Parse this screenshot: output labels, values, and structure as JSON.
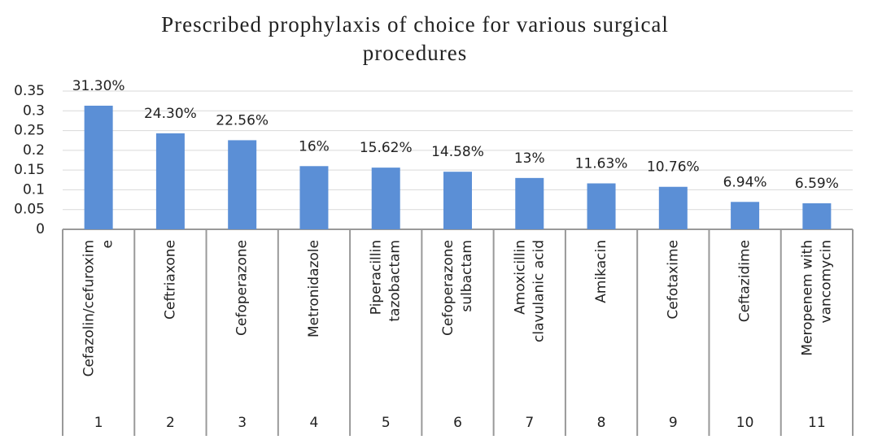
{
  "chart_data": {
    "type": "bar",
    "title": [
      "Prescribed prophylaxis of choice for various surgical",
      "procedures"
    ],
    "categories": [
      "1",
      "2",
      "3",
      "4",
      "5",
      "6",
      "7",
      "8",
      "9",
      "10",
      "11"
    ],
    "category_names": [
      [
        "Cefazolin/cefuroxim",
        "e"
      ],
      [
        "Ceftriaxone"
      ],
      [
        "Cefoperazone"
      ],
      [
        "Metronidazole"
      ],
      [
        "Piperacillin",
        "tazobactam"
      ],
      [
        "Cefoperazone",
        "sulbactam"
      ],
      [
        "Amoxicillin",
        "clavulanic acid"
      ],
      [
        "Amikacin"
      ],
      [
        "Cefotaxime"
      ],
      [
        "Ceftazidime"
      ],
      [
        "Meropenem with",
        "vancomycin"
      ]
    ],
    "values": [
      0.313,
      0.243,
      0.2256,
      0.16,
      0.1562,
      0.1458,
      0.13,
      0.1163,
      0.1076,
      0.0694,
      0.0659
    ],
    "value_labels": [
      "31.30%",
      "24.30%",
      "22.56%",
      "16%",
      "15.62%",
      "14.58%",
      "13%",
      "11.63%",
      "10.76%",
      "6.94%",
      "6.59%"
    ],
    "color": "#5b8fd6",
    "ylim": [
      0,
      0.35
    ],
    "yticks": [
      0,
      0.05,
      0.1,
      0.15,
      0.2,
      0.25,
      0.3,
      0.35
    ],
    "grid": true
  }
}
